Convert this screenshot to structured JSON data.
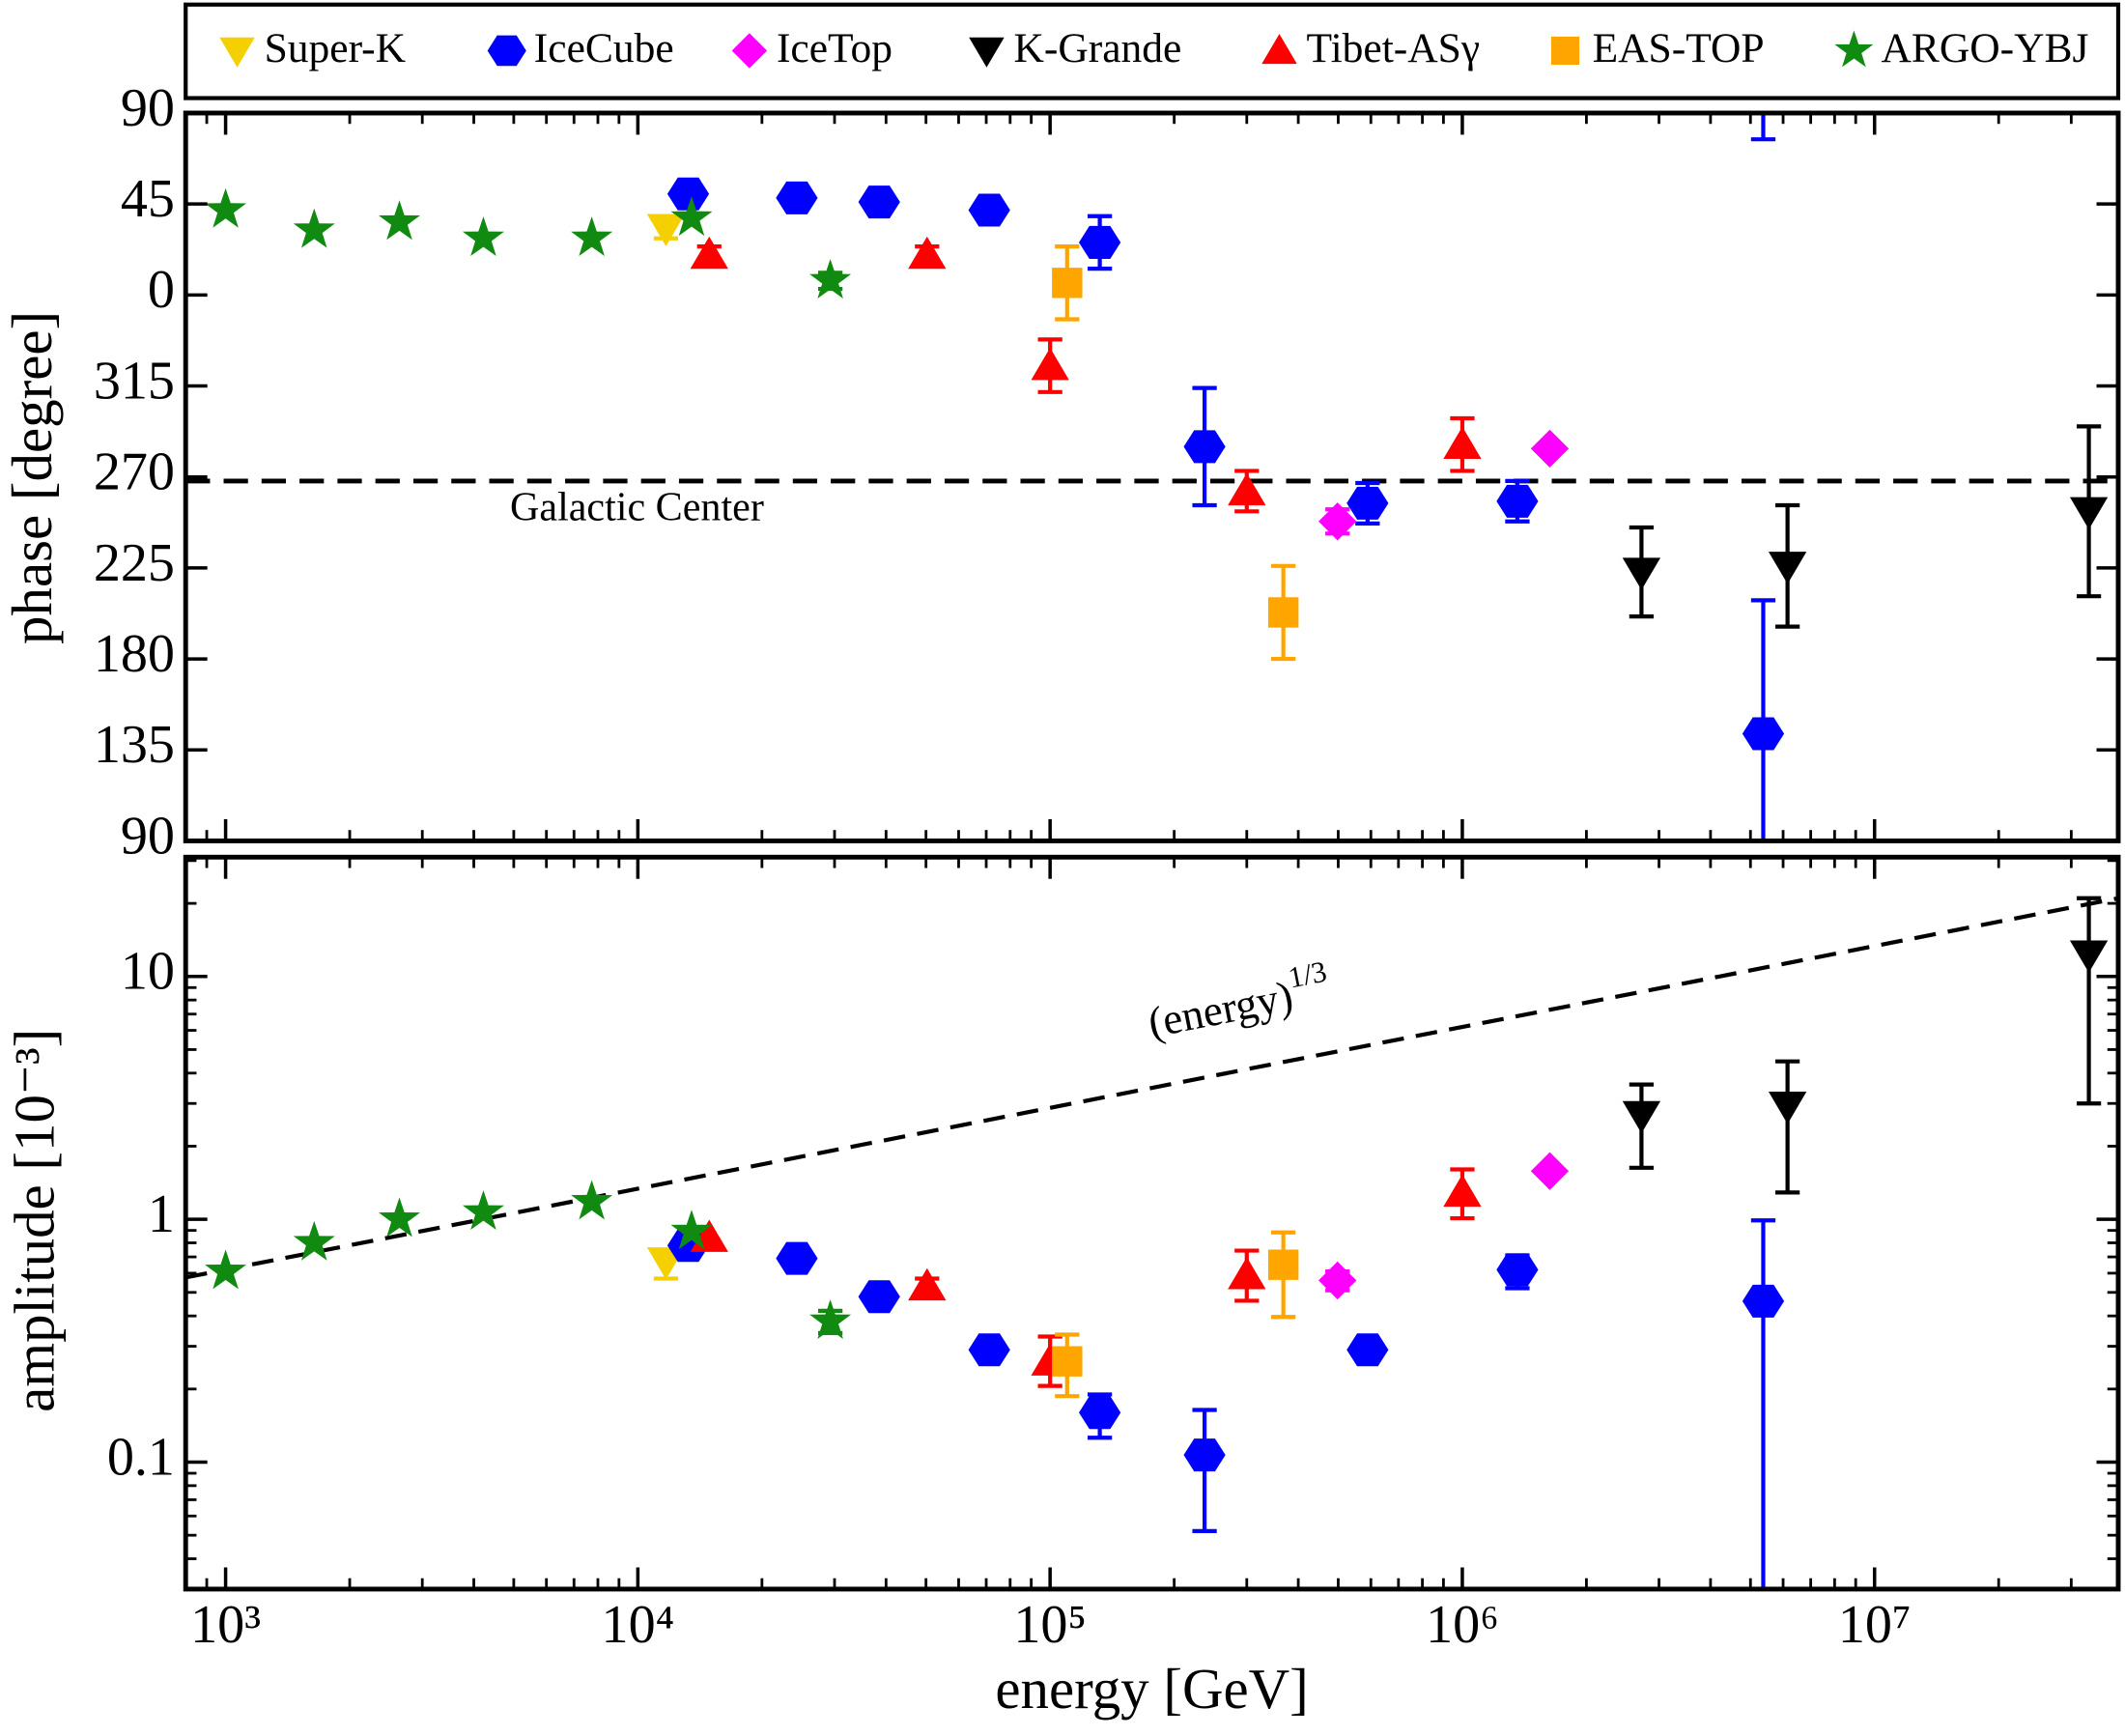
{
  "chart_data": [
    {
      "type": "scatter",
      "ylabel": "phase [degree]",
      "legend": "top",
      "wrap": 360,
      "xlim": [
        800,
        39000000
      ],
      "ylim": [
        90,
        450
      ],
      "yticks": [
        {
          "value": 450,
          "label": "90"
        },
        {
          "value": 405,
          "label": "45"
        },
        {
          "value": 360,
          "label": "0"
        },
        315,
        270,
        225,
        180,
        135,
        90
      ],
      "hline": {
        "value": 268,
        "label": "Galactic Center"
      },
      "series": [
        {
          "name": "Super-K",
          "color": "#f5d000",
          "marker": "triangle-down",
          "x": [
            11700
          ],
          "values": [
            393
          ],
          "errors": [
            [
              5,
              5
            ]
          ]
        },
        {
          "name": "IceCube",
          "color": "#0000ff",
          "marker": "hexagon",
          "x": [
            13250,
            24300,
            38500,
            71200,
            132000,
            237000,
            589000,
            1360000,
            5370000
          ],
          "values": [
            410,
            408,
            406,
            402,
            386,
            285,
            257,
            258,
            143
          ],
          "errors": [
            null,
            null,
            null,
            null,
            [
              13,
              13
            ],
            [
              29,
              29
            ],
            [
              10,
              10
            ],
            [
              10,
              10
            ],
            [
              66,
              66
            ]
          ]
        },
        {
          "name": "IceTop",
          "color": "#ff00ff",
          "marker": "diamond",
          "x": [
            498000,
            1630000
          ],
          "values": [
            248,
            284
          ],
          "errors": [
            [
              6,
              6
            ],
            null
          ]
        },
        {
          "name": "K-Grande",
          "color": "#000000",
          "marker": "triangle-down",
          "x": [
            2720000,
            6150000,
            33100000
          ],
          "values": [
            223,
            226,
            253
          ],
          "errors": [
            [
              22,
              22
            ],
            [
              30,
              30
            ],
            [
              42,
              42
            ]
          ]
        },
        {
          "name": "Tibet-ASγ",
          "color": "#ff0000",
          "marker": "triangle-up",
          "x": [
            14900,
            50300,
            100000,
            300000,
            1000000
          ],
          "values": [
            380,
            380,
            325,
            263,
            286
          ],
          "errors": [
            [
              4,
              4
            ],
            [
              4,
              4
            ],
            [
              13,
              13
            ],
            [
              10,
              10
            ],
            [
              13,
              13
            ]
          ]
        },
        {
          "name": "EAS-TOP",
          "color": "#ffa500",
          "marker": "square",
          "x": [
            110000,
            368000
          ],
          "values": [
            366,
            203
          ],
          "errors": [
            [
              18,
              18
            ],
            [
              23,
              23
            ]
          ]
        },
        {
          "name": "ARGO-YBJ",
          "color": "#108a10",
          "marker": "star",
          "x": [
            1000,
            1640,
            2640,
            4220,
            7730,
            13500,
            29300
          ],
          "values": [
            402,
            392,
            396,
            388,
            388,
            398,
            367
          ],
          "errors": [
            null,
            null,
            null,
            null,
            null,
            null,
            [
              4,
              4
            ]
          ]
        }
      ]
    },
    {
      "type": "scatter",
      "ylabel": "amplitude [10⁻³]",
      "xlabel": "energy [GeV]",
      "ylog": true,
      "xlog": true,
      "xlim": [
        800,
        39000000
      ],
      "ylim": [
        0.03,
        31
      ],
      "xticks": [
        {
          "value": 1000,
          "label": "10³"
        },
        {
          "value": 10000,
          "label": "10⁴"
        },
        {
          "value": 100000,
          "label": "10⁵"
        },
        {
          "value": 1000000,
          "label": "10⁶"
        },
        {
          "value": 10000000,
          "label": "10⁷"
        }
      ],
      "yticks": [
        0.1,
        1,
        10
      ],
      "trend": {
        "label": "(energy)",
        "label_exponent": "1/3",
        "x": [
          800,
          39000000
        ],
        "y": [
          0.576,
          21
        ]
      },
      "series": [
        {
          "color": "#f5d000",
          "marker": "triangle-down",
          "x": [
            11700
          ],
          "values": [
            0.67
          ],
          "errors": [
            [
              0.1,
              0.07
            ]
          ]
        },
        {
          "color": "#0000ff",
          "marker": "hexagon",
          "x": [
            13250,
            24300,
            38500,
            71200,
            132000,
            237000,
            589000,
            1360000,
            5370000
          ],
          "values": [
            0.78,
            0.69,
            0.48,
            0.29,
            0.16,
            0.107,
            0.29,
            0.62,
            0.46
          ],
          "errors": [
            null,
            null,
            null,
            null,
            [
              0.034,
              0.03
            ],
            [
              0.055,
              0.057
            ],
            null,
            [
              0.1,
              0.09
            ],
            [
              0.45,
              0.53
            ]
          ]
        },
        {
          "color": "#ff00ff",
          "marker": "diamond",
          "x": [
            498000,
            1630000
          ],
          "values": [
            0.56,
            1.58
          ],
          "errors": [
            [
              0.05,
              0.05
            ],
            null
          ]
        },
        {
          "color": "#000000",
          "marker": "triangle-down",
          "x": [
            2720000,
            6150000,
            33100000
          ],
          "values": [
            2.68,
            2.93,
            12.3
          ],
          "errors": [
            [
              1.05,
              0.91
            ],
            [
              1.64,
              1.54
            ],
            [
              9.3,
              8.7
            ]
          ]
        },
        {
          "color": "#ff0000",
          "marker": "triangle-up",
          "x": [
            14900,
            50300,
            100000,
            300000,
            1000000
          ],
          "values": [
            0.84,
            0.53,
            0.26,
            0.59,
            1.29
          ],
          "errors": [
            null,
            [
              0.04,
              0.04
            ],
            [
              0.054,
              0.069
            ],
            [
              0.128,
              0.153
            ],
            [
              0.28,
              0.315
            ]
          ]
        },
        {
          "color": "#ffa500",
          "marker": "square",
          "x": [
            110000,
            368000
          ],
          "values": [
            0.26,
            0.65
          ],
          "errors": [
            [
              0.073,
              0.075
            ],
            [
              0.254,
              0.233
            ]
          ]
        },
        {
          "color": "#108a10",
          "marker": "star",
          "x": [
            1000,
            1640,
            2640,
            4220,
            7730,
            13500,
            29300
          ],
          "values": [
            0.61,
            0.8,
            1.0,
            1.07,
            1.18,
            0.89,
            0.38
          ],
          "errors": [
            null,
            null,
            null,
            null,
            null,
            null,
            [
              0.04,
              0.04
            ]
          ]
        }
      ]
    }
  ]
}
